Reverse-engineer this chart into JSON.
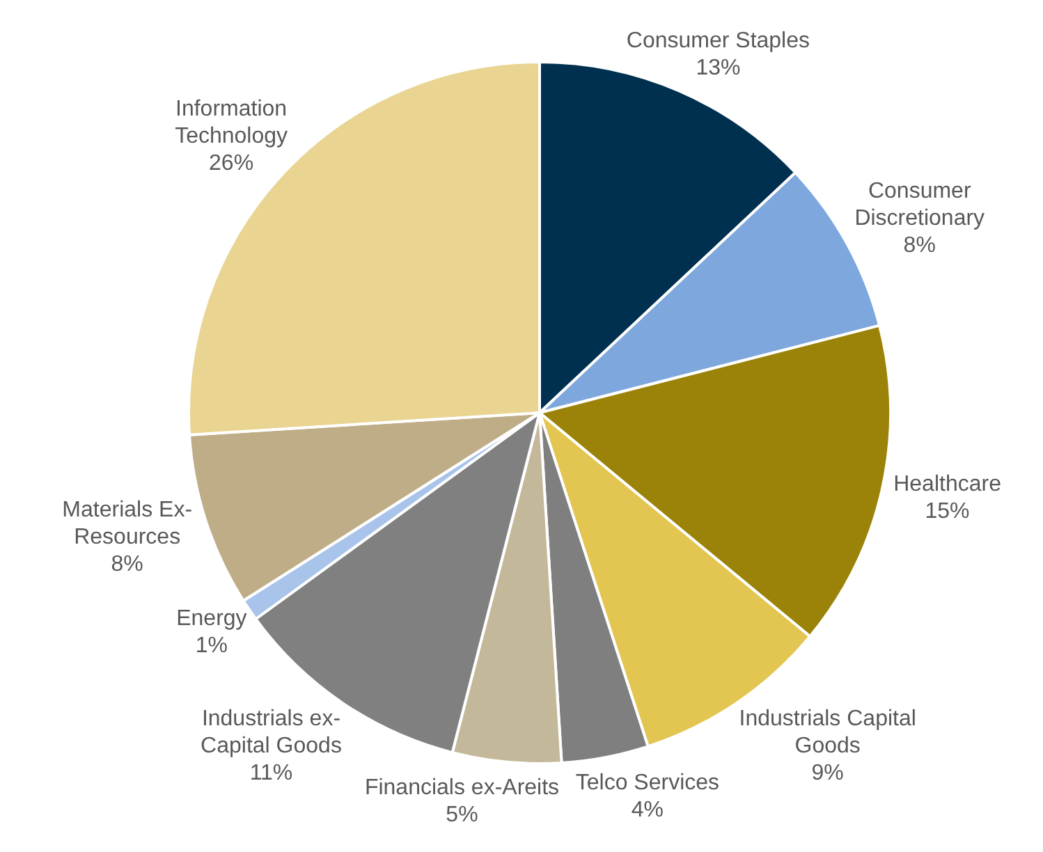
{
  "chart_data": {
    "type": "pie",
    "categories": [
      "Consumer Staples",
      "Consumer Discretionary",
      "Healthcare",
      "Industrials Capital Goods",
      "Telco Services",
      "Financials ex-Areits",
      "Industrials ex-Capital Goods",
      "Energy",
      "Materials Ex-Resources",
      "Information Technology"
    ],
    "values": [
      13,
      8,
      15,
      9,
      4,
      5,
      11,
      1,
      8,
      26
    ],
    "value_labels": [
      "13%",
      "8%",
      "15%",
      "9%",
      "4%",
      "5%",
      "11%",
      "1%",
      "8%",
      "26%"
    ],
    "colors": [
      "#003050",
      "#7da7dd",
      "#9a8308",
      "#e3c551",
      "#7f7f7f",
      "#c4b89a",
      "#808080",
      "#a9c4eb",
      "#bfad88",
      "#e9d492"
    ]
  }
}
